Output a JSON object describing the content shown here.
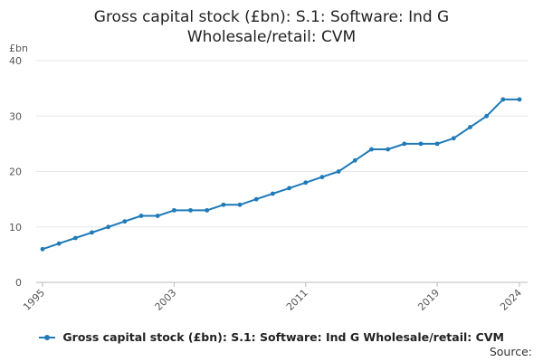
{
  "chart_data": {
    "type": "line",
    "title_line1": "Gross capital stock (£bn): S.1: Software: Ind G",
    "title_line2": "Wholesale/retail: CVM",
    "ylabel": "£bn",
    "ylim": [
      0,
      40
    ],
    "yticks": [
      "0",
      "10",
      "20",
      "30",
      "40"
    ],
    "xlim": [
      1995,
      2024
    ],
    "xtick_values": [
      1995,
      2003,
      2011,
      2019,
      2024
    ],
    "xticks": [
      "1995",
      "2003",
      "2011",
      "2019",
      "2024"
    ],
    "grid": true,
    "series": [
      {
        "name": "Gross capital stock (£bn): S.1: Software: Ind G Wholesale/retail: CVM",
        "color": "#1f7ab8",
        "x": [
          1995,
          1996,
          1997,
          1998,
          1999,
          2000,
          2001,
          2002,
          2003,
          2004,
          2005,
          2006,
          2007,
          2008,
          2009,
          2010,
          2011,
          2012,
          2013,
          2014,
          2015,
          2016,
          2017,
          2018,
          2019,
          2020,
          2021,
          2022,
          2023,
          2024
        ],
        "values": [
          6,
          7,
          8,
          9,
          10,
          11,
          12,
          12,
          13,
          13,
          13,
          14,
          14,
          15,
          16,
          17,
          18,
          19,
          20,
          22,
          24,
          24,
          25,
          25,
          25,
          26,
          28,
          30,
          33,
          33
        ]
      }
    ]
  },
  "source_label": "Source:"
}
